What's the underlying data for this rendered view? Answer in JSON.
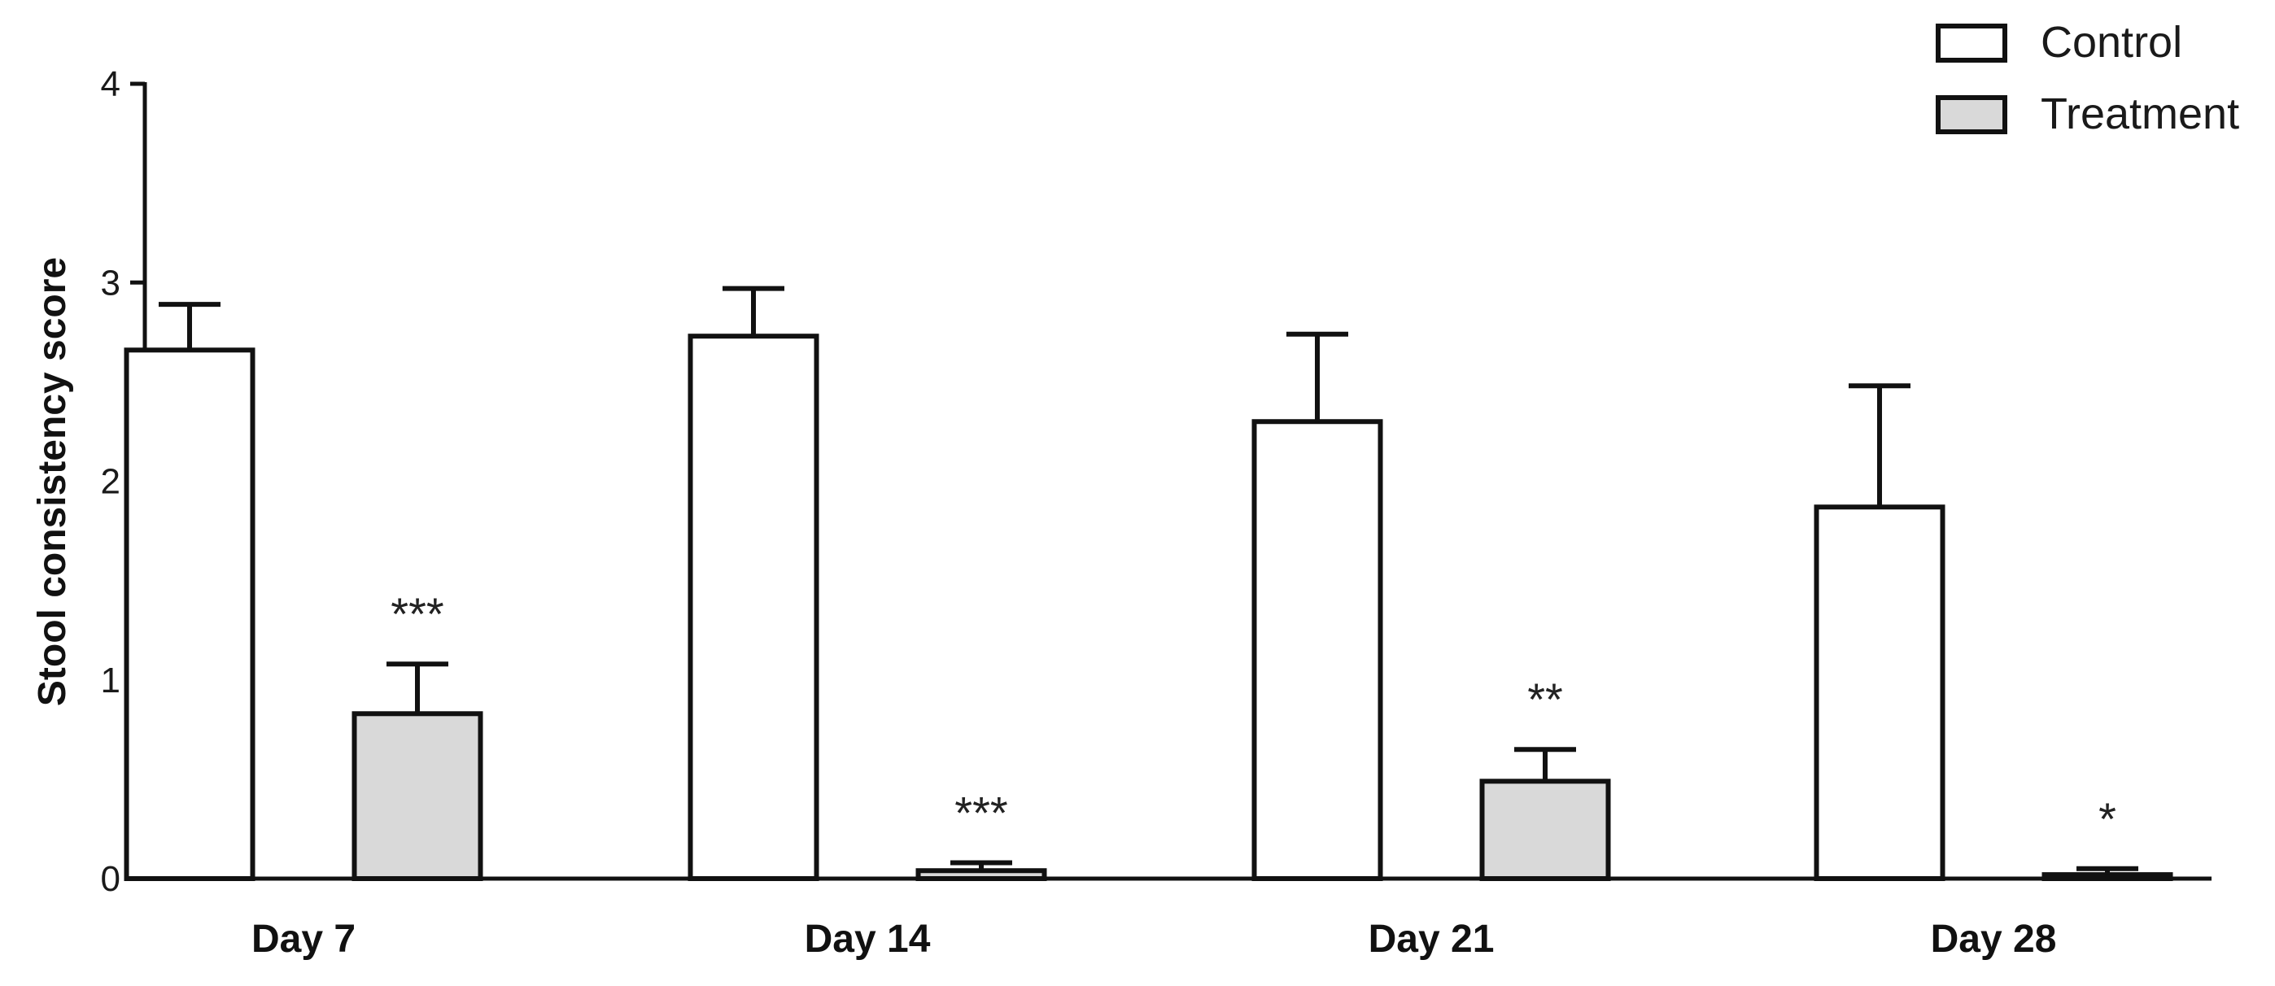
{
  "chart_data": {
    "type": "bar",
    "title": "",
    "xlabel": "",
    "ylabel": "Stool consistency score",
    "ylim": [
      0,
      4
    ],
    "yticks": [
      "0",
      "1",
      "2",
      "3",
      "4"
    ],
    "categories": [
      "Day 7",
      "Day 14",
      "Day 21",
      "Day 28"
    ],
    "series": [
      {
        "name": "Control",
        "values": [
          2.66,
          2.73,
          2.3,
          1.87
        ],
        "errors": [
          0.23,
          0.24,
          0.44,
          0.61
        ],
        "color": "#ffffff"
      },
      {
        "name": "Treatment",
        "values": [
          0.83,
          0.04,
          0.49,
          0.02
        ],
        "errors": [
          0.25,
          0.04,
          0.16,
          0.03
        ],
        "color": "#d9d9d9"
      }
    ],
    "significance": [
      "***",
      "***",
      "**",
      "*"
    ],
    "legend_position": "top-right",
    "grid": false
  }
}
